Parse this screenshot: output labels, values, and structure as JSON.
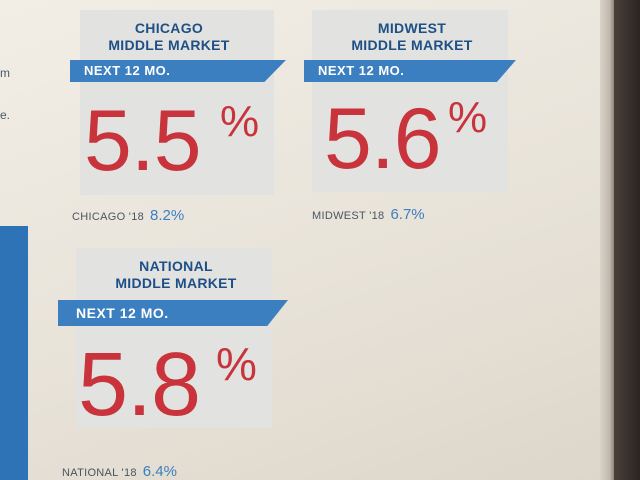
{
  "left_fragments": [
    "m",
    "e."
  ],
  "cards": [
    {
      "title_line1": "CHICAGO",
      "title_line2": "MIDDLE MARKET",
      "banner": "NEXT 12 MO.",
      "value": "5.5",
      "unit": "%",
      "footnote_label": "CHICAGO '18",
      "footnote_value": "8.2%"
    },
    {
      "title_line1": "MIDWEST",
      "title_line2": "MIDDLE MARKET",
      "banner": "NEXT 12 MO.",
      "value": "5.6",
      "unit": "%",
      "footnote_label": "MIDWEST '18",
      "footnote_value": "6.7%"
    },
    {
      "title_line1": "NATIONAL",
      "title_line2": "MIDDLE MARKET",
      "banner": "NEXT 12 MO.",
      "value": "5.8",
      "unit": "%",
      "footnote_label": "NATIONAL '18",
      "footnote_value": "6.4%"
    }
  ],
  "colors": {
    "title": "#1e4f86",
    "banner": "#3b7fc0",
    "value": "#c8333c",
    "card_bg": "#e2e3e0"
  }
}
